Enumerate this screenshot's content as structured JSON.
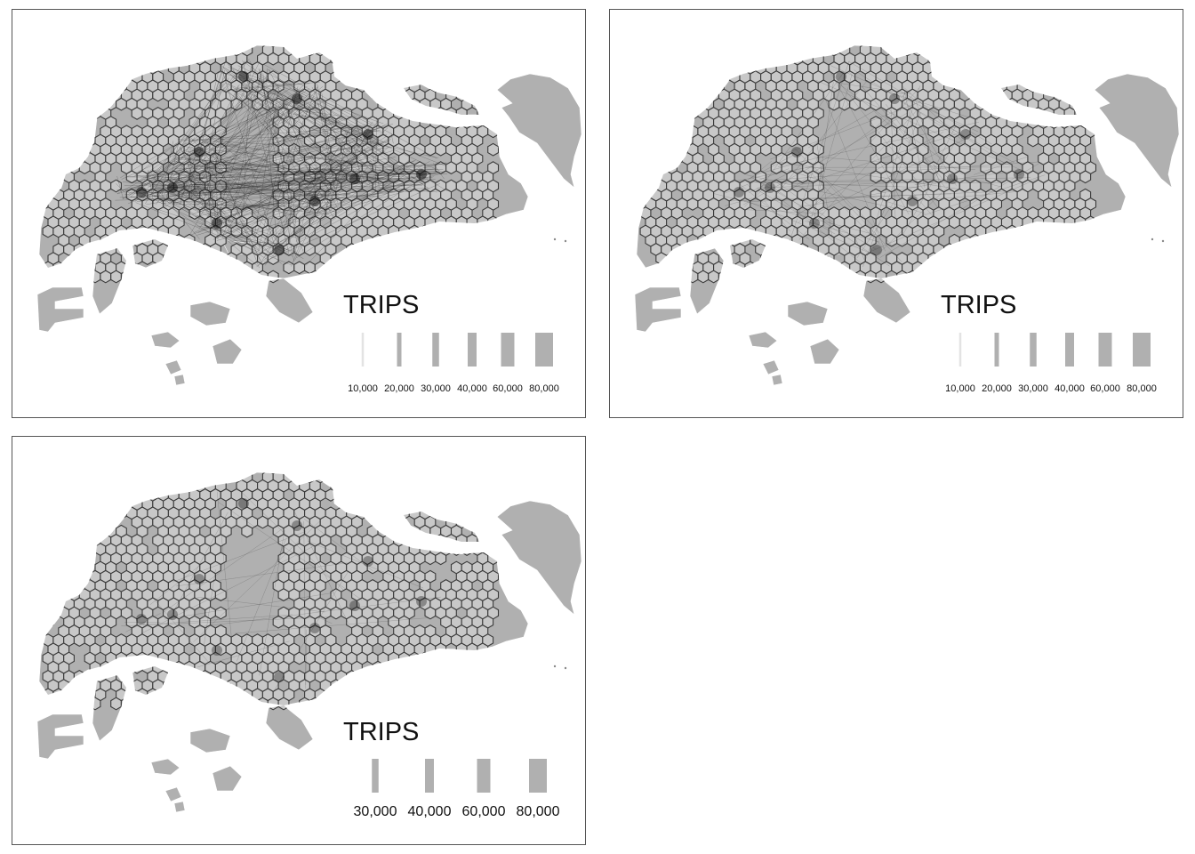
{
  "panels": [
    {
      "id": "panel-1",
      "legend": {
        "title": "TRIPS",
        "labels": [
          "10,000",
          "20,000",
          "30,000",
          "40,000",
          "60,000",
          "80,000"
        ],
        "values": [
          10000,
          20000,
          30000,
          40000,
          60000,
          80000
        ]
      },
      "flow_density": "high"
    },
    {
      "id": "panel-2",
      "legend": {
        "title": "TRIPS",
        "labels": [
          "10,000",
          "20,000",
          "30,000",
          "40,000",
          "60,000",
          "80,000"
        ],
        "values": [
          10000,
          20000,
          30000,
          40000,
          60000,
          80000
        ]
      },
      "flow_density": "medium"
    },
    {
      "id": "panel-3",
      "legend": {
        "title": "TRIPS",
        "labels": [
          "30,000",
          "40,000",
          "60,000",
          "80,000"
        ],
        "values": [
          30000,
          40000,
          60000,
          80000
        ]
      },
      "flow_density": "low"
    }
  ],
  "colors": {
    "land": "#b0b0b0",
    "hex_fill": "#c8c8c8",
    "hex_stroke": "#3a3a3a",
    "flow_line": "#1a1a1a",
    "legend_bar": "#b0b0b0",
    "frame": "#555555"
  }
}
